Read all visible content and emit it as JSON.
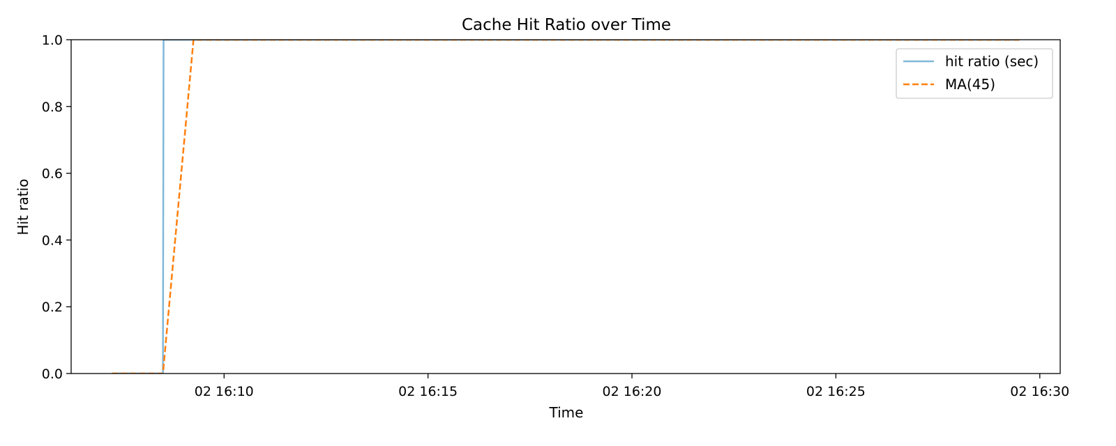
{
  "chart_data": {
    "type": "line",
    "title": "Cache Hit Ratio over Time",
    "xlabel": "Time",
    "ylabel": "Hit ratio",
    "x_tick_labels": [
      "02 16:10",
      "02 16:15",
      "02 16:20",
      "02 16:25",
      "02 16:30"
    ],
    "x_ticks": [
      "16:10",
      "16:15",
      "16:20",
      "16:25",
      "16:30"
    ],
    "xlim": [
      "16:06:15",
      "16:30:30"
    ],
    "ylim": [
      0.0,
      1.0
    ],
    "y_ticks": [
      0.0,
      0.2,
      0.4,
      0.6,
      0.8,
      1.0
    ],
    "y_tick_labels": [
      "0.0",
      "0.2",
      "0.4",
      "0.6",
      "0.8",
      "1.0"
    ],
    "grid": false,
    "legend_position": "top-right",
    "series": [
      {
        "name": "hit ratio (sec)",
        "color": "#7fb8d9",
        "style": "solid",
        "points": [
          {
            "x": "16:07:15",
            "y": 0.0
          },
          {
            "x": "16:08:30",
            "y": 0.0
          },
          {
            "x": "16:08:31",
            "y": 1.0
          },
          {
            "x": "16:29:30",
            "y": 1.0
          }
        ]
      },
      {
        "name": "MA(45)",
        "color": "#ff7f0e",
        "style": "dashed",
        "points": [
          {
            "x": "16:07:15",
            "y": 0.0
          },
          {
            "x": "16:08:30",
            "y": 0.0
          },
          {
            "x": "16:09:15",
            "y": 1.0
          },
          {
            "x": "16:29:30",
            "y": 1.0
          }
        ]
      }
    ]
  }
}
